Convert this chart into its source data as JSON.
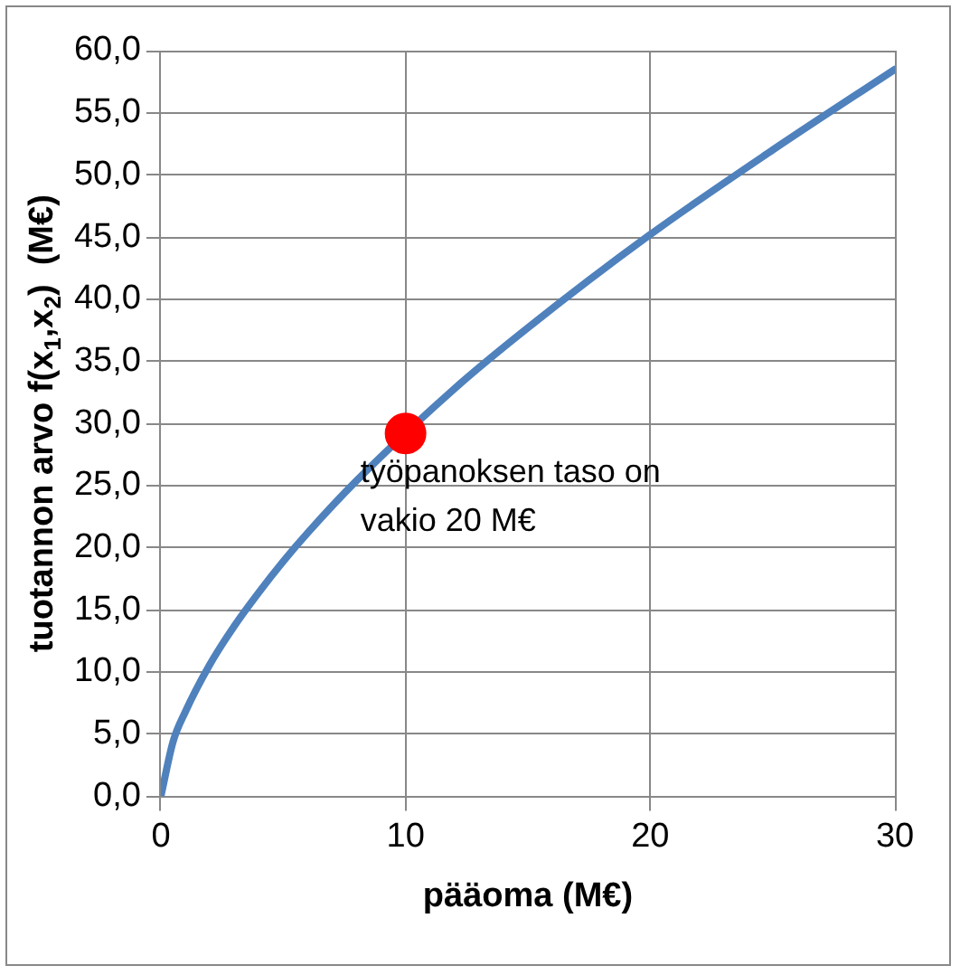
{
  "chart_data": {
    "type": "line",
    "xlabel": "pääoma (M€)",
    "ylabel": "tuotannon arvo f(x$_{1}$,x$_{2}$)  (M€)",
    "series": [
      {
        "marker": "none",
        "color": "#4f81bd",
        "x": [
          0,
          0.5,
          1,
          2,
          3,
          4,
          5,
          6,
          8,
          12,
          15,
          20,
          25,
          30
        ],
        "values": [
          0,
          4.4,
          6.8,
          10.6,
          13.7,
          16.4,
          18.9,
          21.2,
          25.4,
          32.8,
          37.7,
          45.2,
          52.0,
          58.5
        ]
      },
      {
        "type": "scatter",
        "marker": "circle",
        "color": "#ff0000",
        "x": [
          10
        ],
        "values": [
          29.2
        ]
      }
    ],
    "xlim": [
      0,
      30
    ],
    "xticks": [
      0,
      10,
      20,
      30
    ],
    "ylim": [
      0,
      60
    ],
    "yticks": [
      {
        "value": 0,
        "label": "0,0"
      },
      {
        "value": 5,
        "label": "5,0"
      },
      {
        "value": 10,
        "label": "10,0"
      },
      {
        "value": 15,
        "label": "15,0"
      },
      {
        "value": 20,
        "label": "20,0"
      },
      {
        "value": 25,
        "label": "25,0"
      },
      {
        "value": 30,
        "label": "30,0"
      },
      {
        "value": 35,
        "label": "35,0"
      },
      {
        "value": 40,
        "label": "40,0"
      },
      {
        "value": 45,
        "label": "45,0"
      },
      {
        "value": 50,
        "label": "50,0"
      },
      {
        "value": 55,
        "label": "55,0"
      },
      {
        "value": 60,
        "label": "60,0"
      }
    ],
    "annotations": [
      {
        "text": "työpanoksen taso on vakio 20 M€",
        "x": 10,
        "y": 29.2
      }
    ],
    "grid": true,
    "legend": false
  }
}
